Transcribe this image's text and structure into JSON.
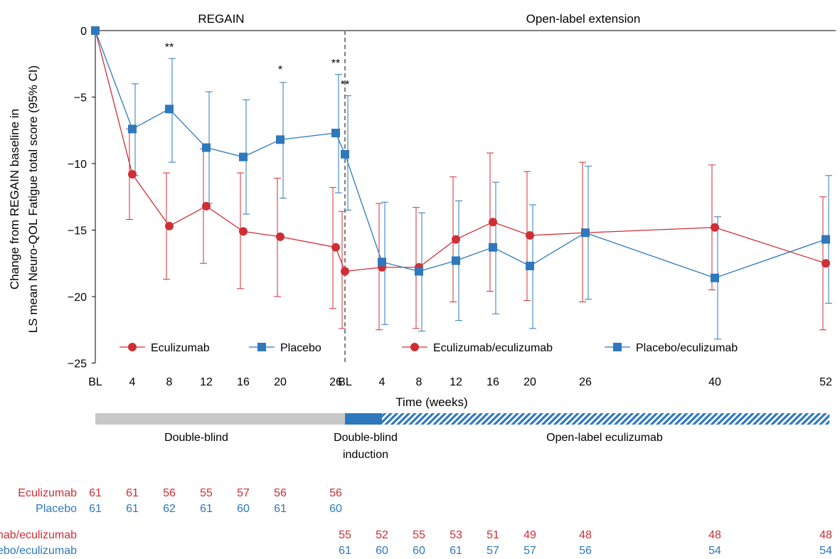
{
  "chart_data": {
    "type": "line",
    "ylabel_lines": [
      "Change from REGAIN baseline in",
      "LS mean Neuro-QOL Fatigue total score (95% CI)"
    ],
    "xlabel": "Time (weeks)",
    "ylim": [
      -25,
      0
    ],
    "yticks": [
      0,
      -5,
      -10,
      -15,
      -20,
      -25
    ],
    "ytick_labels": [
      "0",
      "−5",
      "−10",
      "−15",
      "−20",
      "−25"
    ],
    "grid": false,
    "phase_labels": {
      "regain": "REGAIN",
      "extension": "Open-label extension"
    },
    "x": [
      0,
      4,
      8,
      12,
      16,
      20,
      26,
      27,
      31,
      35,
      39,
      43,
      47,
      53,
      67,
      79
    ],
    "x_tick_labels": [
      "BL",
      "4",
      "8",
      "12",
      "16",
      "20",
      "26",
      "BL",
      "4",
      "8",
      "12",
      "16",
      "20",
      "26",
      "40",
      "52"
    ],
    "legend_position": "bottom",
    "series": [
      {
        "name": "Eculizumab",
        "legend_group": "regain",
        "color": "#d02e35",
        "marker": "circle",
        "x": [
          0,
          4,
          8,
          12,
          16,
          20,
          26
        ],
        "y": [
          0,
          -10.8,
          -14.7,
          -13.2,
          -15.1,
          -15.5,
          -16.3
        ],
        "lower": [
          0,
          -14.2,
          -18.7,
          -17.5,
          -19.4,
          -20.0,
          -20.9
        ],
        "upper": [
          0,
          -7.4,
          -10.7,
          -8.9,
          -10.7,
          -11.1,
          -11.8
        ]
      },
      {
        "name": "Placebo",
        "legend_group": "regain",
        "color": "#2e78bd",
        "marker": "square",
        "x": [
          0,
          4,
          8,
          12,
          16,
          20,
          26
        ],
        "y": [
          0,
          -7.4,
          -5.9,
          -8.8,
          -9.5,
          -8.2,
          -7.7
        ],
        "lower": [
          0,
          -10.9,
          -9.9,
          -13.0,
          -13.8,
          -12.6,
          -12.2
        ],
        "upper": [
          0,
          -4.0,
          -2.1,
          -4.6,
          -5.2,
          -3.9,
          -3.3
        ]
      },
      {
        "name": "Eculizumab/eculizumab",
        "legend_group": "extension",
        "color": "#d02e35",
        "marker": "circle",
        "x": [
          27,
          31,
          35,
          39,
          43,
          47,
          53,
          67,
          79
        ],
        "y": [
          -18.1,
          -17.8,
          -17.8,
          -15.7,
          -14.4,
          -15.4,
          -15.2,
          -14.8,
          -17.5
        ],
        "lower": [
          -22.4,
          -22.5,
          -22.4,
          -20.4,
          -19.6,
          -20.3,
          -20.4,
          -19.5,
          -22.5
        ],
        "upper": [
          -13.6,
          -13.0,
          -13.3,
          -11.0,
          -9.2,
          -10.6,
          -9.9,
          -10.1,
          -12.5
        ]
      },
      {
        "name": "Placebo/eculizumab",
        "legend_group": "extension",
        "color": "#2e78bd",
        "marker": "square",
        "x": [
          27,
          31,
          35,
          39,
          43,
          47,
          53,
          67,
          79
        ],
        "y": [
          -9.3,
          -17.4,
          -18.1,
          -17.3,
          -16.3,
          -17.7,
          -15.2,
          -18.6,
          -15.7
        ],
        "lower": [
          -13.5,
          -22.1,
          -22.6,
          -21.8,
          -21.3,
          -22.4,
          -20.2,
          -23.2,
          -20.5
        ],
        "upper": [
          -4.9,
          -12.9,
          -13.7,
          -12.8,
          -11.4,
          -13.1,
          -10.2,
          -14.0,
          -10.9
        ]
      }
    ],
    "links": [
      {
        "color": "#d02e35",
        "from": [
          26,
          -16.3
        ],
        "to": [
          27,
          -18.1
        ]
      },
      {
        "color": "#2e78bd",
        "from": [
          26,
          -7.7
        ],
        "to": [
          27,
          -9.3
        ]
      }
    ],
    "significance": [
      {
        "x": 8,
        "y": -1.2,
        "label": "**"
      },
      {
        "x": 20,
        "y": -2.9,
        "label": "*"
      },
      {
        "x": 26,
        "y": -2.4,
        "label": "**"
      },
      {
        "x": 27,
        "y": -4.0,
        "label": "**"
      }
    ],
    "phase_bars": [
      {
        "label": "Double-blind",
        "style": "gray",
        "x_start": 0,
        "x_end": 27
      },
      {
        "label": "Double-blind\ninduction",
        "style": "blue",
        "x_start": 27,
        "x_end": 31
      },
      {
        "label": "Open-label eculizumab",
        "style": "hatched",
        "x_start": 31,
        "x_end": 79.4
      }
    ],
    "patient_counts": [
      {
        "label": "Eculizumab",
        "color": "#d02e35",
        "x": [
          0,
          4,
          8,
          12,
          16,
          20,
          26
        ],
        "values": [
          61,
          61,
          56,
          55,
          57,
          56,
          56
        ]
      },
      {
        "label": "Placebo",
        "color": "#2e78bd",
        "x": [
          0,
          4,
          8,
          12,
          16,
          20,
          26
        ],
        "values": [
          61,
          61,
          62,
          61,
          60,
          61,
          60
        ]
      },
      {
        "label": "Eculizumab/eculizumab",
        "color": "#d02e35",
        "x": [
          27,
          31,
          35,
          39,
          43,
          47,
          53,
          67,
          79
        ],
        "values": [
          55,
          52,
          55,
          53,
          51,
          49,
          48,
          48,
          48
        ]
      },
      {
        "label": "Placebo/eculizumab",
        "color": "#2e78bd",
        "x": [
          27,
          31,
          35,
          39,
          43,
          47,
          53,
          67,
          79
        ],
        "values": [
          61,
          60,
          60,
          61,
          57,
          57,
          56,
          54,
          54
        ]
      }
    ]
  }
}
